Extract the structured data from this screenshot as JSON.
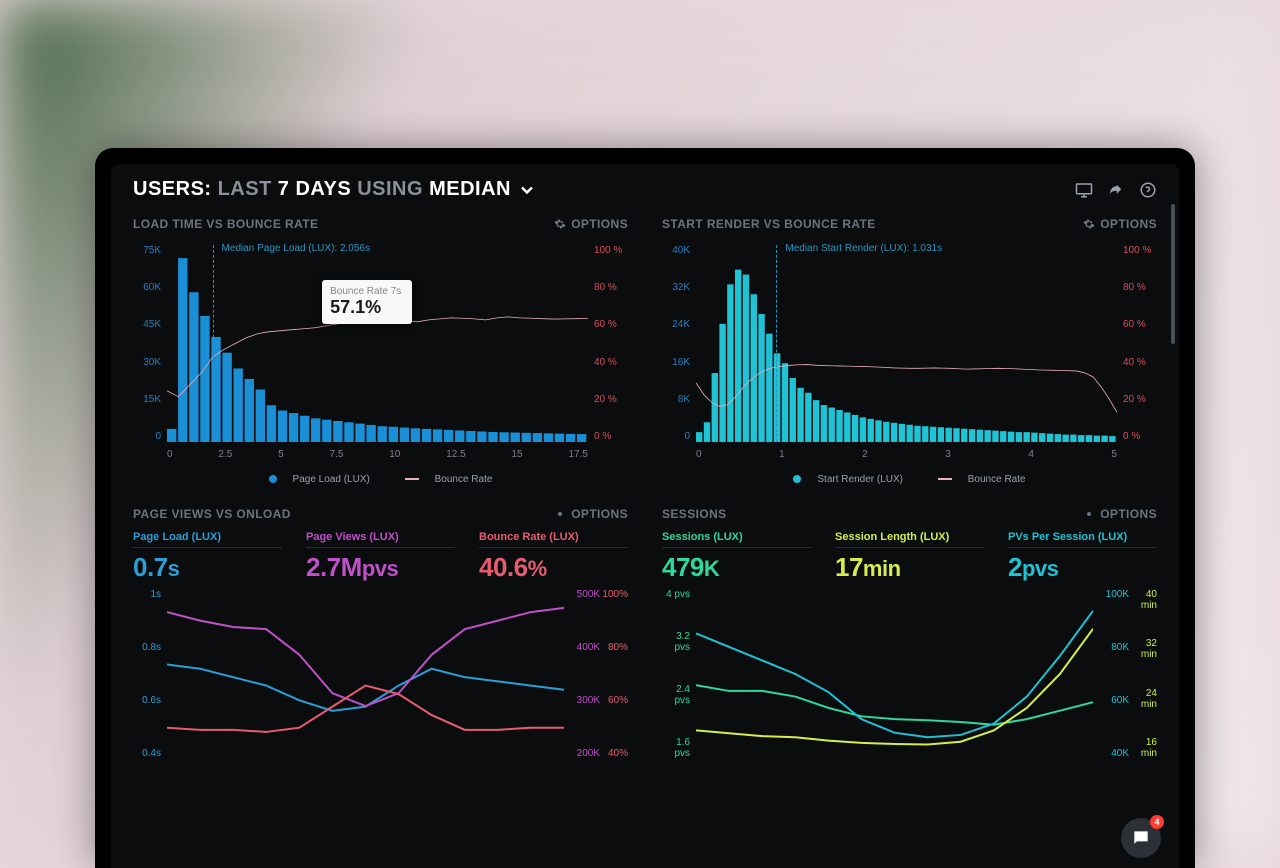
{
  "header": {
    "prefix": "USERS:",
    "range": "LAST",
    "days": "7 DAYS",
    "using": "USING",
    "metric": "MEDIAN"
  },
  "options_label": "OPTIONS",
  "charts": {
    "load_bounce": {
      "type": "bar+line",
      "title": "LOAD TIME VS BOUNCE RATE",
      "indicator_label": "Median Page Load (LUX): 2.056s",
      "indicator_x": 2.056,
      "tooltip_label": "Bounce Rate 7s",
      "tooltip_value": "57.1%",
      "left_axis": {
        "max": 75,
        "step": 15,
        "unit": "K",
        "color": "#2a7fbf",
        "ticks": [
          "75K",
          "60K",
          "45K",
          "30K",
          "15K",
          "0"
        ]
      },
      "right_axis": {
        "max": 100,
        "step": 20,
        "unit": "%",
        "color": "#d94d5d",
        "ticks": [
          "100 %",
          "80 %",
          "60 %",
          "40 %",
          "20 %",
          "0 %"
        ]
      },
      "x_axis": {
        "min": 0,
        "max": 19,
        "ticks": [
          "0",
          "2.5",
          "5",
          "7.5",
          "10",
          "12.5",
          "15",
          "17.5"
        ]
      },
      "bars": {
        "color": "#1a8fd6",
        "values": [
          5,
          70,
          57,
          48,
          40,
          34,
          28,
          24,
          20,
          14,
          12,
          11,
          10,
          9,
          8.5,
          8,
          7.5,
          7,
          6.5,
          6,
          5.8,
          5.5,
          5.2,
          5,
          4.8,
          4.6,
          4.4,
          4.2,
          4,
          3.8,
          3.7,
          3.6,
          3.5,
          3.4,
          3.3,
          3.2,
          3.1,
          3
        ],
        "width_ratio": 0.85
      },
      "line": {
        "color": "#eab0bd",
        "stroke_width": 2,
        "values": [
          26,
          23,
          29,
          35,
          43,
          47,
          50,
          53,
          55,
          56,
          56.5,
          57,
          57.5,
          58,
          59,
          60,
          61,
          61.5,
          62,
          62,
          62,
          61.5,
          61,
          62,
          62.5,
          63,
          62.8,
          62.5,
          62,
          63,
          63.5,
          63,
          62.8,
          62.6,
          62.4,
          62.5,
          62.6,
          62.8
        ]
      },
      "legend_bars": "Page Load (LUX)",
      "legend_line": "Bounce Rate"
    },
    "render_bounce": {
      "type": "bar+line",
      "title": "START RENDER VS BOUNCE RATE",
      "indicator_label": "Median Start Render (LUX): 1.031s",
      "indicator_x": 1.031,
      "left_axis": {
        "max": 40,
        "step": 8,
        "unit": "K",
        "color": "#2a7fbf",
        "ticks": [
          "40K",
          "32K",
          "24K",
          "16K",
          "8K",
          "0"
        ]
      },
      "right_axis": {
        "max": 100,
        "step": 20,
        "unit": "%",
        "color": "#d94d5d",
        "ticks": [
          "100 %",
          "80 %",
          "60 %",
          "40 %",
          "20 %",
          "0 %"
        ]
      },
      "x_axis": {
        "min": 0,
        "max": 5.4,
        "ticks": [
          "0",
          "1",
          "2",
          "3",
          "4",
          "5"
        ]
      },
      "bars": {
        "color": "#1fc3d4",
        "values": [
          2,
          4,
          14,
          24,
          32,
          35,
          34,
          30,
          26,
          22,
          18,
          16,
          13,
          11,
          10,
          8.5,
          7.5,
          7,
          6.5,
          6,
          5.5,
          5,
          4.7,
          4.4,
          4.1,
          3.9,
          3.7,
          3.5,
          3.3,
          3.2,
          3.1,
          3,
          2.9,
          2.8,
          2.7,
          2.6,
          2.5,
          2.4,
          2.3,
          2.2,
          2.1,
          2,
          2,
          1.9,
          1.8,
          1.7,
          1.6,
          1.5,
          1.5,
          1.4,
          1.4,
          1.3,
          1.3,
          1.2
        ],
        "width_ratio": 0.82
      },
      "line": {
        "color": "#eab0bd",
        "stroke_width": 2,
        "values": [
          30,
          24,
          20,
          18,
          19,
          23,
          28,
          32,
          35,
          37,
          38,
          38.5,
          39,
          39.2,
          39.3,
          39,
          38.8,
          38.7,
          38.6,
          38.5,
          38.4,
          38.3,
          38.2,
          38,
          37.8,
          37.6,
          37.5,
          37.4,
          37.4,
          37.5,
          37.6,
          37.5,
          37.4,
          37.2,
          37,
          37.1,
          37.2,
          37.3,
          37.4,
          37.3,
          37.2,
          37,
          36.8,
          36.6,
          36.5,
          36.4,
          36.3,
          36.2,
          36,
          35,
          33,
          28,
          22,
          15
        ]
      },
      "legend_bars": "Start Render (LUX)",
      "legend_line": "Bounce Rate"
    }
  },
  "panels": {
    "pageviews": {
      "title": "PAGE VIEWS VS ONLOAD",
      "metrics": [
        {
          "label": "Page Load (LUX)",
          "value": "0.7",
          "unit": "s",
          "color": "#2a9fd6"
        },
        {
          "label": "Page Views (LUX)",
          "value": "2.7M",
          "unit": "pvs",
          "color": "#c050c8"
        },
        {
          "label": "Bounce Rate (LUX)",
          "value": "40.6",
          "unit": "%",
          "color": "#e85c72"
        }
      ],
      "left_axis": {
        "color": "#2a9fd6",
        "ticks": [
          "1s",
          "0.8s",
          "0.6s",
          "0.4s"
        ]
      },
      "right_axis1": {
        "color": "#c050c8",
        "ticks": [
          "500K",
          "400K",
          "300K",
          "200K"
        ]
      },
      "right_axis2": {
        "color": "#e85c72",
        "ticks": [
          "100%",
          "80%",
          "60%",
          "40%"
        ]
      },
      "lines": [
        {
          "color": "#2a9fd6",
          "values": [
            0.72,
            0.7,
            0.66,
            0.62,
            0.55,
            0.5,
            0.52,
            0.62,
            0.7,
            0.66,
            0.64,
            0.62,
            0.6
          ],
          "domain": [
            0.3,
            1.05
          ]
        },
        {
          "color": "#c050c8",
          "values": [
            480,
            460,
            445,
            440,
            380,
            290,
            260,
            290,
            380,
            440,
            460,
            480,
            490
          ],
          "domain": [
            150,
            520
          ]
        },
        {
          "color": "#e85c72",
          "values": [
            42,
            41,
            41,
            40,
            42,
            52,
            62,
            58,
            48,
            41,
            41,
            42,
            42
          ],
          "domain": [
            30,
            105
          ]
        }
      ]
    },
    "sessions": {
      "title": "SESSIONS",
      "metrics": [
        {
          "label": "Sessions (LUX)",
          "value": "479",
          "unit": "K",
          "color": "#2fd89a"
        },
        {
          "label": "Session Length (LUX)",
          "value": "17",
          "unit": "min",
          "color": "#d6ed4d"
        },
        {
          "label": "PVs Per Session (LUX)",
          "value": "2",
          "unit": "pvs",
          "color": "#1fc3d4"
        }
      ],
      "left_axis": {
        "color": "#2fd89a",
        "ticks": [
          "4 pvs",
          "3.2 pvs",
          "2.4 pvs",
          "1.6 pvs"
        ]
      },
      "right_axis1": {
        "color": "#1fc3d4",
        "ticks": [
          "100K",
          "80K",
          "60K",
          "40K"
        ]
      },
      "right_axis2": {
        "color": "#d6ed4d",
        "ticks": [
          "40 min",
          "32 min",
          "24 min",
          "16 min"
        ]
      },
      "lines": [
        {
          "color": "#2fd89a",
          "values": [
            2.6,
            2.5,
            2.5,
            2.4,
            2.2,
            2.05,
            2.0,
            1.98,
            1.95,
            1.9,
            2.0,
            2.15,
            2.3
          ],
          "domain": [
            1.4,
            4.2
          ]
        },
        {
          "color": "#d6ed4d",
          "values": [
            18,
            17.5,
            17,
            16.8,
            16.2,
            15.8,
            15.6,
            15.5,
            16,
            18,
            22,
            28,
            36
          ],
          "domain": [
            14,
            42
          ]
        },
        {
          "color": "#1fc3d4",
          "values": [
            88,
            82,
            76,
            70,
            62,
            50,
            44,
            42,
            43,
            48,
            60,
            78,
            98
          ],
          "domain": [
            35,
            105
          ]
        }
      ]
    }
  },
  "chat_badge": "4"
}
